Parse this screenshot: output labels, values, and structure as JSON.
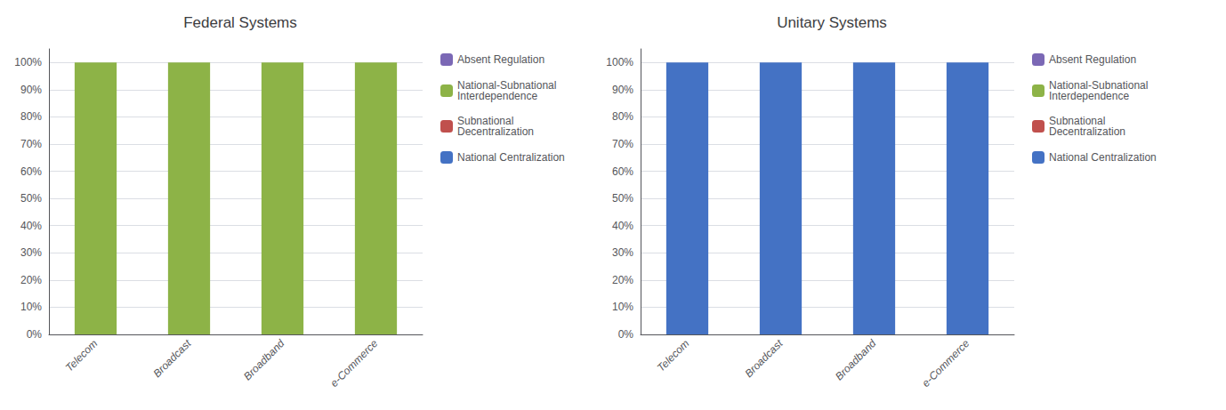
{
  "chart_data": [
    {
      "type": "bar",
      "stacked": true,
      "title": "Federal Systems",
      "categories": [
        "Telecom",
        "Broadcast",
        "Broadband",
        "e-Commerce"
      ],
      "series": [
        {
          "name": "Absent Regulation",
          "color": "#7B68B5",
          "values": [
            0,
            0,
            0,
            0
          ]
        },
        {
          "name": "National-Subnational\nInterdependence",
          "color": "#8DB347",
          "values": [
            100,
            100,
            100,
            100
          ]
        },
        {
          "name": "Subnational\nDecentralization",
          "color": "#C0504D",
          "values": [
            0,
            0,
            0,
            0
          ]
        },
        {
          "name": "National Centralization",
          "color": "#4472C4",
          "values": [
            0,
            0,
            0,
            0
          ]
        }
      ],
      "ylim": [
        0,
        105
      ],
      "yticks": [
        {
          "value": 0,
          "label": "0%"
        },
        {
          "value": 10,
          "label": "10%"
        },
        {
          "value": 20,
          "label": "20%"
        },
        {
          "value": 30,
          "label": "30%"
        },
        {
          "value": 40,
          "label": "40%"
        },
        {
          "value": 50,
          "label": "50%"
        },
        {
          "value": 60,
          "label": "60%"
        },
        {
          "value": 70,
          "label": "70%"
        },
        {
          "value": 80,
          "label": "80%"
        },
        {
          "value": 90,
          "label": "90%"
        },
        {
          "value": 100,
          "label": "100%"
        }
      ],
      "grid": true,
      "legend": "right"
    },
    {
      "type": "bar",
      "stacked": true,
      "title": "Unitary Systems",
      "categories": [
        "Telecom",
        "Broadcast",
        "Broadband",
        "e-Commerce"
      ],
      "series": [
        {
          "name": "Absent Regulation",
          "color": "#7B68B5",
          "values": [
            0,
            0,
            0,
            0
          ]
        },
        {
          "name": "National-Subnational\nInterdependence",
          "color": "#8DB347",
          "values": [
            0,
            0,
            0,
            0
          ]
        },
        {
          "name": "Subnational\nDecentralization",
          "color": "#C0504D",
          "values": [
            0,
            0,
            0,
            0
          ]
        },
        {
          "name": "National Centralization",
          "color": "#4472C4",
          "values": [
            100,
            100,
            100,
            100
          ]
        }
      ],
      "ylim": [
        0,
        105
      ],
      "yticks": [
        {
          "value": 0,
          "label": "0%"
        },
        {
          "value": 10,
          "label": "10%"
        },
        {
          "value": 20,
          "label": "20%"
        },
        {
          "value": 30,
          "label": "30%"
        },
        {
          "value": 40,
          "label": "40%"
        },
        {
          "value": 50,
          "label": "50%"
        },
        {
          "value": 60,
          "label": "60%"
        },
        {
          "value": 70,
          "label": "70%"
        },
        {
          "value": 80,
          "label": "80%"
        },
        {
          "value": 90,
          "label": "90%"
        },
        {
          "value": 100,
          "label": "100%"
        }
      ],
      "grid": true,
      "legend": "right"
    }
  ]
}
